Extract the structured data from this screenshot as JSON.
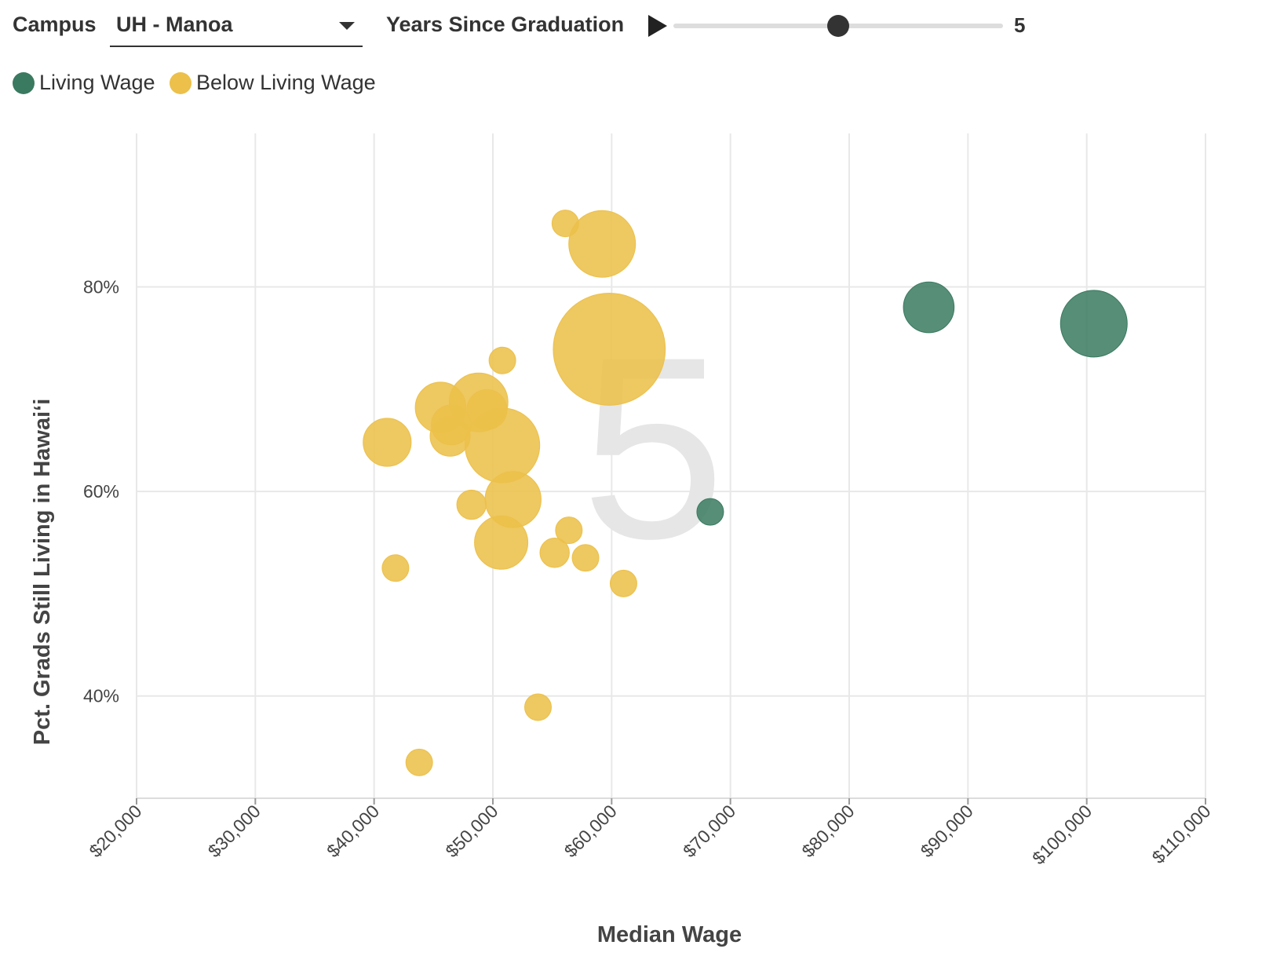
{
  "controls": {
    "campus_label": "Campus",
    "campus_value": "UH - Manoa",
    "years_label": "Years Since Graduation",
    "years_value": "5",
    "slider_position": 0.5
  },
  "legend": [
    {
      "label": "Living Wage",
      "color": "#3a7a60"
    },
    {
      "label": "Below Living Wage",
      "color": "#ecc04a"
    }
  ],
  "chart_data": {
    "type": "scatter",
    "xlabel": "Median Wage",
    "ylabel": "Pct. Grads Still Living in Hawaiʻi",
    "watermark": "5",
    "xlim": [
      20000,
      110000
    ],
    "ylim": [
      30,
      95
    ],
    "x_ticks": [
      20000,
      30000,
      40000,
      50000,
      60000,
      70000,
      80000,
      90000,
      100000,
      110000
    ],
    "x_tick_labels": [
      "$20,000",
      "$30,000",
      "$40,000",
      "$50,000",
      "$60,000",
      "$70,000",
      "$80,000",
      "$90,000",
      "$100,000",
      "$110,000"
    ],
    "y_ticks": [
      40,
      60,
      80
    ],
    "y_tick_labels": [
      "40%",
      "60%",
      "80%"
    ],
    "grid": true,
    "size_unit": "relative bubble radius",
    "series": [
      {
        "name": "Living Wage",
        "color": "#3a7a60",
        "points": [
          {
            "x": 68300,
            "y": 58.0,
            "r": 1.0
          },
          {
            "x": 86700,
            "y": 78.0,
            "r": 1.9
          },
          {
            "x": 100600,
            "y": 76.4,
            "r": 2.5
          }
        ]
      },
      {
        "name": "Below Living Wage",
        "color": "#ecc04a",
        "points": [
          {
            "x": 56100,
            "y": 86.2,
            "r": 1.0
          },
          {
            "x": 59200,
            "y": 84.2,
            "r": 2.5
          },
          {
            "x": 59800,
            "y": 73.9,
            "r": 4.2
          },
          {
            "x": 50800,
            "y": 72.8,
            "r": 1.0
          },
          {
            "x": 45600,
            "y": 68.2,
            "r": 1.9
          },
          {
            "x": 48800,
            "y": 68.7,
            "r": 2.2
          },
          {
            "x": 49500,
            "y": 68.0,
            "r": 1.5
          },
          {
            "x": 46500,
            "y": 66.5,
            "r": 1.5
          },
          {
            "x": 46400,
            "y": 65.4,
            "r": 1.5
          },
          {
            "x": 41100,
            "y": 64.8,
            "r": 1.8
          },
          {
            "x": 50800,
            "y": 64.5,
            "r": 2.8
          },
          {
            "x": 51700,
            "y": 59.2,
            "r": 2.1
          },
          {
            "x": 48200,
            "y": 58.7,
            "r": 1.1
          },
          {
            "x": 56400,
            "y": 56.2,
            "r": 1.0
          },
          {
            "x": 50700,
            "y": 55.0,
            "r": 2.0
          },
          {
            "x": 55200,
            "y": 54.0,
            "r": 1.1
          },
          {
            "x": 57800,
            "y": 53.5,
            "r": 1.0
          },
          {
            "x": 41800,
            "y": 52.5,
            "r": 1.0
          },
          {
            "x": 61000,
            "y": 51.0,
            "r": 1.0
          },
          {
            "x": 53800,
            "y": 38.9,
            "r": 1.0
          },
          {
            "x": 43800,
            "y": 33.5,
            "r": 1.0
          }
        ]
      }
    ]
  }
}
